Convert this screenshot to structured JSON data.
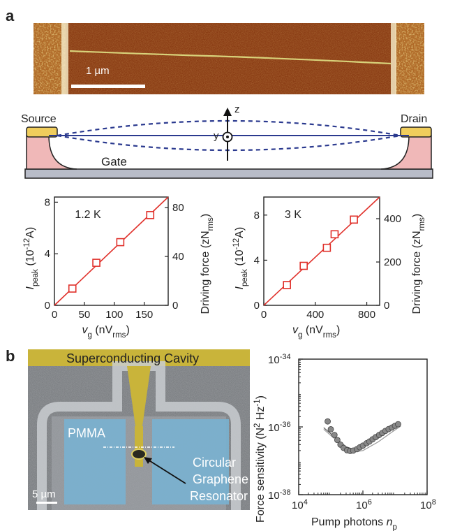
{
  "panel_a": {
    "letter": "a",
    "afm_scale_label": "1 µm",
    "schematic": {
      "source_label": "Source",
      "drain_label": "Drain",
      "gate_label": "Gate",
      "z_label": "z",
      "y_label": "y"
    }
  },
  "panel_b": {
    "letter": "b",
    "image_labels": {
      "cavity": "Superconducting Cavity",
      "pmma": "PMMA",
      "resonator_line1": "Circular",
      "resonator_line2": "Graphene",
      "resonator_line3": "Resonator",
      "scale": "5 µm"
    }
  },
  "colors": {
    "line_red": "#e0302a",
    "dashed_blue": "#2b3a8f",
    "data_gray": "#888888",
    "cavity_yellow": "#c9b43a",
    "pmma_blue": "#7ab1cf",
    "contact_yellow": "#f0cd5c",
    "contact_pink": "#f0b8b8"
  },
  "chart_data": [
    {
      "type": "scatter",
      "annotation": "1.2 K",
      "xlabel": "v_g (nV_rms)",
      "ylabel_left": "I_peak (10^-12 A)",
      "ylabel_right": "Driving force (zN_rms)",
      "xlim": [
        0,
        190
      ],
      "ylim": [
        0,
        8.4
      ],
      "xticks": [
        "0",
        "50",
        "100",
        "150"
      ],
      "yticks_left": [
        "0",
        "4",
        "8"
      ],
      "yticks_right": [
        "0",
        "40",
        "80"
      ],
      "points": [
        [
          30,
          1.3
        ],
        [
          70,
          3.3
        ],
        [
          110,
          4.9
        ],
        [
          160,
          7.0
        ]
      ],
      "fit": [
        [
          0,
          0
        ],
        [
          190,
          8.4
        ]
      ]
    },
    {
      "type": "scatter",
      "annotation": "3 K",
      "xlabel": "v_g (nV_rms)",
      "ylabel_left": "I_peak (10^-12 A)",
      "ylabel_right": "Driving force (zN_rms)",
      "xlim": [
        0,
        900
      ],
      "ylim": [
        0,
        9.6
      ],
      "xticks": [
        "0",
        "400",
        "800"
      ],
      "yticks_left": [
        "0",
        "4",
        "8"
      ],
      "yticks_right": [
        "0",
        "200",
        "400"
      ],
      "points": [
        [
          180,
          1.8
        ],
        [
          310,
          3.5
        ],
        [
          490,
          5.1
        ],
        [
          550,
          6.3
        ],
        [
          700,
          7.6
        ]
      ],
      "fit": [
        [
          0,
          0
        ],
        [
          900,
          9.6
        ]
      ]
    },
    {
      "type": "scatter",
      "xlabel": "Pump photons n_p",
      "ylabel": "Force sensitivity (N^2 Hz^-1)",
      "xscale": "log",
      "yscale": "log",
      "xlim": [
        10000,
        100000000
      ],
      "ylim": [
        1e-38,
        1e-34
      ],
      "xticks": [
        "10^4",
        "10^6",
        "10^8"
      ],
      "yticks": [
        "10^-34",
        "10^-36",
        "10^-38"
      ],
      "points": [
        [
          80000,
          1.45e-36
        ],
        [
          100000,
          8.5e-37
        ],
        [
          130000,
          5.8e-37
        ],
        [
          160000,
          4.1e-37
        ],
        [
          200000,
          3e-37
        ],
        [
          250000,
          2.4e-37
        ],
        [
          320000,
          2.05e-37
        ],
        [
          400000,
          1.95e-37
        ],
        [
          500000,
          2e-37
        ],
        [
          650000,
          2.2e-37
        ],
        [
          800000,
          2.5e-37
        ],
        [
          1000000,
          2.8e-37
        ],
        [
          1300000,
          3.3e-37
        ],
        [
          1600000,
          3.7e-37
        ],
        [
          2000000,
          4.3e-37
        ],
        [
          2500000,
          5e-37
        ],
        [
          3200000,
          5.8e-37
        ],
        [
          4000000,
          6.6e-37
        ],
        [
          5000000,
          7.6e-37
        ],
        [
          6300000,
          8.6e-37
        ],
        [
          8000000,
          9.6e-37
        ],
        [
          10000000,
          1.08e-36
        ],
        [
          12500000,
          1.2e-36
        ]
      ],
      "fit_curves": [
        [
          [
            60000,
            8.5e-37
          ],
          [
            150000,
            4e-37
          ],
          [
            300000,
            2.2e-37
          ],
          [
            500000,
            1.8e-37
          ],
          [
            1000000,
            2e-37
          ],
          [
            3000000,
            3.6e-37
          ],
          [
            8000000,
            7e-37
          ],
          [
            15000000,
            1.05e-36
          ]
        ],
        [
          [
            60000,
            9.5e-37
          ],
          [
            150000,
            4.5e-37
          ],
          [
            300000,
            2.6e-37
          ],
          [
            500000,
            2.2e-37
          ],
          [
            1000000,
            2.6e-37
          ],
          [
            3000000,
            4.6e-37
          ],
          [
            8000000,
            8.6e-37
          ],
          [
            15000000,
            1.25e-36
          ]
        ]
      ]
    }
  ]
}
